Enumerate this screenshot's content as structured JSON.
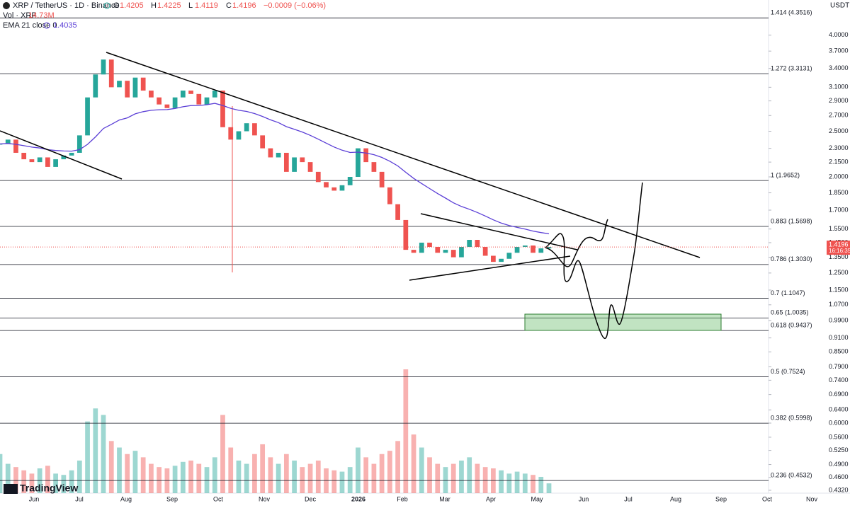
{
  "header": {
    "symbol": "XRP / TetherUS · 1D · Binance",
    "ohlc_letters": [
      "O",
      "H",
      "L",
      "C"
    ],
    "ohlc_values": [
      "1.4205",
      "1.4225",
      "1.4119",
      "1.4196"
    ],
    "change": "−0.0009 (−0.06%)",
    "volume_label": "Vol · XRP",
    "volume_value": "14.73M",
    "ema_label": "EMA 21 close 0",
    "ema_value": "1.4035",
    "currency": "USDT",
    "logo": "TradingView"
  },
  "chart_data": {
    "type": "candlestick",
    "log_scale": true,
    "ylim": [
      0.426,
      4.75
    ],
    "yticks": [
      {
        "value": 4.0,
        "label": "4.0000"
      },
      {
        "value": 3.7,
        "label": "3.7000"
      },
      {
        "value": 3.4,
        "label": "3.4000"
      },
      {
        "value": 3.1,
        "label": "3.1000"
      },
      {
        "value": 2.9,
        "label": "2.9000"
      },
      {
        "value": 2.7,
        "label": "2.7000"
      },
      {
        "value": 2.5,
        "label": "2.5000"
      },
      {
        "value": 2.3,
        "label": "2.3000"
      },
      {
        "value": 2.15,
        "label": "2.1500"
      },
      {
        "value": 2.0,
        "label": "2.0000"
      },
      {
        "value": 1.85,
        "label": "1.8500"
      },
      {
        "value": 1.7,
        "label": "1.7000"
      },
      {
        "value": 1.55,
        "label": "1.5500"
      },
      {
        "value": 1.45,
        "label": "1.4500"
      },
      {
        "value": 1.35,
        "label": "1.3500"
      },
      {
        "value": 1.25,
        "label": "1.2500"
      },
      {
        "value": 1.15,
        "label": "1.1500"
      },
      {
        "value": 1.07,
        "label": "1.0700"
      },
      {
        "value": 0.99,
        "label": "0.9900"
      },
      {
        "value": 0.91,
        "label": "0.9100"
      },
      {
        "value": 0.85,
        "label": "0.8500"
      },
      {
        "value": 0.79,
        "label": "0.7900"
      },
      {
        "value": 0.74,
        "label": "0.7400"
      },
      {
        "value": 0.69,
        "label": "0.6900"
      },
      {
        "value": 0.64,
        "label": "0.6400"
      },
      {
        "value": 0.6,
        "label": "0.6000"
      },
      {
        "value": 0.56,
        "label": "0.5600"
      },
      {
        "value": 0.525,
        "label": "0.5250"
      },
      {
        "value": 0.49,
        "label": "0.4900"
      },
      {
        "value": 0.46,
        "label": "0.4600"
      },
      {
        "value": 0.432,
        "label": "0.4320"
      }
    ],
    "x_labels": [
      "Jun",
      "Jul",
      "Aug",
      "Sep",
      "Oct",
      "Nov",
      "Dec",
      "2026",
      "Feb",
      "Mar",
      "Apr",
      "May",
      "Jun",
      "Jul",
      "Aug",
      "Sep",
      "Oct",
      "Nov"
    ],
    "fib_levels": [
      {
        "value": 4.3516,
        "label": "1.414 (4.3516)"
      },
      {
        "value": 3.3131,
        "label": "1.272 (3.3131)"
      },
      {
        "value": 1.9652,
        "label": "1 (1.9652)"
      },
      {
        "value": 1.5698,
        "label": "0.883 (1.5698)"
      },
      {
        "value": 1.303,
        "label": "0.786 (1.3030)"
      },
      {
        "value": 1.1047,
        "label": "0.7 (1.1047)"
      },
      {
        "value": 1.0035,
        "label": "0.65 (1.0035)"
      },
      {
        "value": 0.9437,
        "label": "0.618 (0.9437)"
      },
      {
        "value": 0.7524,
        "label": "0.5 (0.7524)"
      },
      {
        "value": 0.5998,
        "label": "0.382 (0.5998)"
      },
      {
        "value": 0.4532,
        "label": "0.236 (0.4532)"
      }
    ],
    "last_price": 1.4196,
    "countdown": "16:16:35",
    "up_color": "#26a69a",
    "down_color": "#ef5350",
    "ema_color": "#5b3fd6",
    "closes": [
      2.35,
      2.4,
      2.25,
      2.18,
      2.15,
      2.2,
      2.1,
      2.18,
      2.22,
      2.25,
      2.45,
      2.95,
      3.3,
      3.55,
      3.1,
      3.2,
      2.95,
      3.25,
      3.05,
      2.95,
      2.85,
      2.8,
      2.95,
      3.05,
      3.0,
      2.85,
      2.95,
      3.05,
      2.55,
      2.4,
      2.5,
      2.6,
      2.45,
      2.3,
      2.2,
      2.25,
      2.05,
      2.2,
      2.15,
      2.05,
      1.95,
      1.9,
      1.87,
      1.92,
      2.0,
      2.3,
      2.15,
      2.05,
      1.9,
      1.75,
      1.62,
      1.4,
      1.38,
      1.45,
      1.42,
      1.38,
      1.4,
      1.35,
      1.42,
      1.47,
      1.42,
      1.36,
      1.32,
      1.34,
      1.38,
      1.42,
      1.43,
      1.38,
      1.41,
      1.42
    ],
    "volumes": [
      60,
      45,
      40,
      35,
      30,
      38,
      42,
      30,
      28,
      35,
      50,
      110,
      130,
      120,
      80,
      70,
      60,
      65,
      55,
      45,
      40,
      38,
      42,
      48,
      50,
      45,
      40,
      55,
      120,
      70,
      50,
      45,
      60,
      75,
      55,
      45,
      60,
      50,
      40,
      45,
      50,
      38,
      35,
      33,
      40,
      70,
      55,
      45,
      60,
      65,
      80,
      190,
      90,
      70,
      55,
      45,
      40,
      45,
      50,
      55,
      45,
      40,
      38,
      35,
      30,
      33,
      30,
      28,
      25,
      15
    ]
  }
}
